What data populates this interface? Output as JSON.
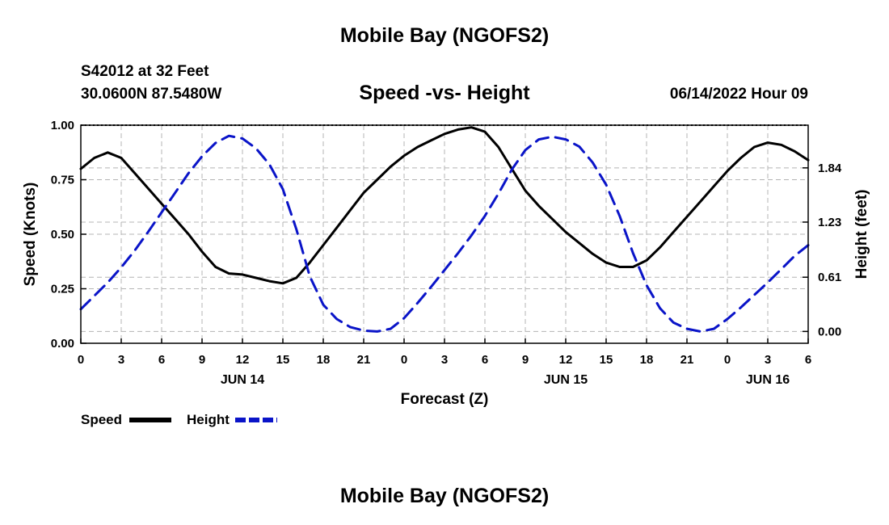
{
  "header": {
    "title": "Mobile Bay (NGOFS2)",
    "station": "S42012 at 32 Feet",
    "coords": "30.0600N  87.5480W",
    "subtitle": "Speed -vs- Height",
    "datetime": "06/14/2022 Hour 09"
  },
  "footer": {
    "title": "Mobile Bay (NGOFS2)"
  },
  "legend": {
    "speed_label": "Speed",
    "height_label": "Height"
  },
  "colors": {
    "speed": "#000000",
    "height": "#0a14c8",
    "grid": "#b4b4b4"
  },
  "chart_data": {
    "type": "line",
    "xlabel": "Forecast (Z)",
    "ylabel_left": "Speed (Knots)",
    "ylabel_right": "Height (feet)",
    "x_ticks": [
      "0",
      "3",
      "6",
      "9",
      "12",
      "15",
      "18",
      "21",
      "0",
      "3",
      "6",
      "9",
      "12",
      "15",
      "18",
      "21",
      "0",
      "3",
      "6"
    ],
    "x_range_hours": [
      0,
      54
    ],
    "date_labels": [
      {
        "label": "JUN 14",
        "hour": 12
      },
      {
        "label": "JUN 15",
        "hour": 36
      },
      {
        "label": "JUN 16",
        "hour": 51
      }
    ],
    "y_left_ticks": [
      "0.00",
      "0.25",
      "0.50",
      "0.75",
      "1.00"
    ],
    "ylim_left": [
      0,
      1
    ],
    "y_right_ticks": [
      {
        "label": "0.00",
        "value": 0.0
      },
      {
        "label": "0.61",
        "value": 0.61
      },
      {
        "label": "1.23",
        "value": 1.23
      },
      {
        "label": "1.84",
        "value": 1.84
      }
    ],
    "ylim_right": [
      -0.133,
      2.32
    ],
    "grid": true,
    "legend_position": "bottom-left",
    "series": [
      {
        "name": "Speed",
        "axis": "left",
        "style": "solid",
        "x": [
          0,
          1,
          2,
          3,
          4,
          5,
          6,
          7,
          8,
          9,
          10,
          11,
          12,
          13,
          14,
          15,
          16,
          17,
          18,
          19,
          20,
          21,
          22,
          23,
          24,
          25,
          26,
          27,
          28,
          29,
          30,
          31,
          32,
          33,
          34,
          35,
          36,
          37,
          38,
          39,
          40,
          41,
          42,
          43,
          44,
          45,
          46,
          47,
          48,
          49,
          50,
          51,
          52,
          53,
          54
        ],
        "values": [
          0.8,
          0.85,
          0.875,
          0.85,
          0.78,
          0.71,
          0.64,
          0.57,
          0.5,
          0.42,
          0.35,
          0.32,
          0.315,
          0.3,
          0.285,
          0.275,
          0.3,
          0.37,
          0.45,
          0.53,
          0.61,
          0.69,
          0.75,
          0.81,
          0.86,
          0.9,
          0.93,
          0.96,
          0.98,
          0.99,
          0.97,
          0.9,
          0.8,
          0.7,
          0.63,
          0.57,
          0.51,
          0.46,
          0.41,
          0.37,
          0.35,
          0.35,
          0.38,
          0.44,
          0.51,
          0.58,
          0.65,
          0.72,
          0.79,
          0.85,
          0.9,
          0.92,
          0.91,
          0.88,
          0.84
        ]
      },
      {
        "name": "Height",
        "axis": "right",
        "style": "dashed",
        "x": [
          0,
          1,
          2,
          3,
          4,
          5,
          6,
          7,
          8,
          9,
          10,
          11,
          12,
          13,
          14,
          15,
          16,
          17,
          18,
          19,
          20,
          21,
          22,
          23,
          24,
          25,
          26,
          27,
          28,
          29,
          30,
          31,
          32,
          33,
          34,
          35,
          36,
          37,
          38,
          39,
          40,
          41,
          42,
          43,
          44,
          45,
          46,
          47,
          48,
          49,
          50,
          51,
          52,
          53,
          54
        ],
        "values": [
          0.25,
          0.4,
          0.55,
          0.72,
          0.91,
          1.12,
          1.34,
          1.56,
          1.78,
          1.97,
          2.12,
          2.2,
          2.17,
          2.06,
          1.88,
          1.6,
          1.15,
          0.62,
          0.3,
          0.14,
          0.05,
          0.01,
          0.0,
          0.03,
          0.15,
          0.32,
          0.5,
          0.69,
          0.88,
          1.08,
          1.3,
          1.55,
          1.82,
          2.04,
          2.16,
          2.19,
          2.16,
          2.08,
          1.9,
          1.65,
          1.3,
          0.88,
          0.52,
          0.26,
          0.1,
          0.03,
          0.0,
          0.03,
          0.14,
          0.27,
          0.41,
          0.55,
          0.7,
          0.85,
          0.97
        ]
      }
    ]
  }
}
